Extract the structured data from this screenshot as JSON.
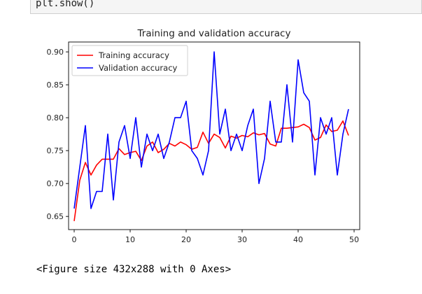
{
  "code_cell": {
    "code": "plt.show()"
  },
  "output": {
    "figure_text": "<Figure size 432x288 with 0 Axes>"
  },
  "chart_data": {
    "type": "line",
    "title": "Training and validation accuracy",
    "xlabel": "",
    "ylabel": "",
    "xlim": [
      -1,
      51
    ],
    "ylim": [
      0.63,
      0.915
    ],
    "x_ticks": [
      "0",
      "10",
      "20",
      "30",
      "40",
      "50"
    ],
    "y_ticks": [
      "0.65",
      "0.70",
      "0.75",
      "0.80",
      "0.85",
      "0.90"
    ],
    "legend_position": "top-left",
    "grid": false,
    "x": [
      0,
      1,
      2,
      3,
      4,
      5,
      6,
      7,
      8,
      9,
      10,
      11,
      12,
      13,
      14,
      15,
      16,
      17,
      18,
      19,
      20,
      21,
      22,
      23,
      24,
      25,
      26,
      27,
      28,
      29,
      30,
      31,
      32,
      33,
      34,
      35,
      36,
      37,
      38,
      39,
      40,
      41,
      42,
      43,
      44,
      45,
      46,
      47,
      48,
      49
    ],
    "series": [
      {
        "name": "Training accuracy",
        "color": "#ff0000",
        "values": [
          0.643,
          0.705,
          0.732,
          0.713,
          0.728,
          0.737,
          0.737,
          0.737,
          0.753,
          0.744,
          0.747,
          0.749,
          0.735,
          0.757,
          0.763,
          0.747,
          0.752,
          0.761,
          0.757,
          0.763,
          0.759,
          0.752,
          0.755,
          0.778,
          0.761,
          0.775,
          0.77,
          0.754,
          0.772,
          0.769,
          0.773,
          0.771,
          0.777,
          0.774,
          0.776,
          0.76,
          0.757,
          0.784,
          0.784,
          0.785,
          0.786,
          0.79,
          0.785,
          0.766,
          0.77,
          0.789,
          0.779,
          0.781,
          0.795,
          0.773
        ]
      },
      {
        "name": "Validation accuracy",
        "color": "#0000ff",
        "values": [
          0.662,
          0.725,
          0.788,
          0.662,
          0.688,
          0.688,
          0.775,
          0.675,
          0.763,
          0.788,
          0.738,
          0.8,
          0.725,
          0.775,
          0.75,
          0.775,
          0.738,
          0.763,
          0.8,
          0.8,
          0.825,
          0.75,
          0.738,
          0.713,
          0.75,
          0.9,
          0.775,
          0.813,
          0.75,
          0.775,
          0.75,
          0.788,
          0.813,
          0.7,
          0.738,
          0.825,
          0.763,
          0.763,
          0.85,
          0.763,
          0.888,
          0.838,
          0.825,
          0.713,
          0.8,
          0.775,
          0.8,
          0.713,
          0.775,
          0.813
        ]
      }
    ]
  }
}
